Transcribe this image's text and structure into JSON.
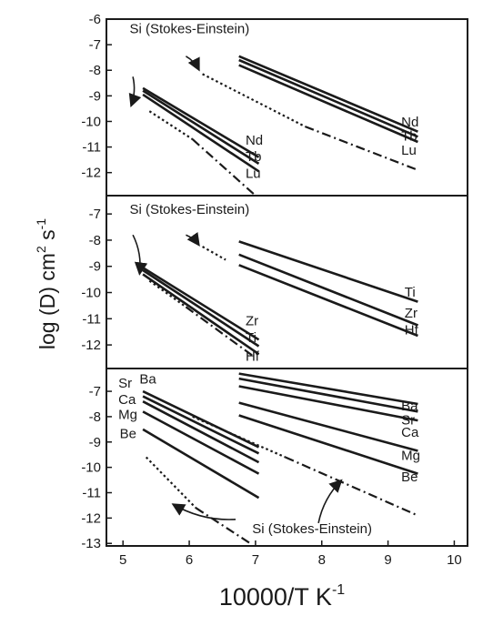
{
  "figure": {
    "xlabel_main": "10000/T  K",
    "xlabel_sup": "-1",
    "ylabel_main": "log (D) cm",
    "ylabel_sup1": "2",
    "ylabel_mid": " s",
    "ylabel_sup2": "-1",
    "ink_color": "#1a1a1a"
  },
  "chart_data": [
    {
      "type": "line",
      "panel": "top",
      "xlim": [
        4.75,
        10.2
      ],
      "ylim": [
        -12.9,
        -6
      ],
      "x_ticks": [],
      "y_ticks": [
        "-6",
        "-7",
        "-8",
        "-9",
        "-10",
        "-11",
        "-12"
      ],
      "series": [
        {
          "name": "Nd",
          "style": "solid",
          "x": [
            5.3,
            7.05
          ],
          "y": [
            -8.7,
            -11.4
          ]
        },
        {
          "name": "Tb",
          "style": "solid",
          "x": [
            5.3,
            7.05
          ],
          "y": [
            -8.8,
            -11.65
          ]
        },
        {
          "name": "Lu",
          "style": "solid",
          "x": [
            5.3,
            7.05
          ],
          "y": [
            -8.95,
            -11.95
          ]
        },
        {
          "name": "Nd",
          "style": "solid",
          "x": [
            6.75,
            9.45
          ],
          "y": [
            -7.45,
            -10.4
          ]
        },
        {
          "name": "Tb",
          "style": "solid",
          "x": [
            6.75,
            9.45
          ],
          "y": [
            -7.6,
            -10.6
          ]
        },
        {
          "name": "Lu",
          "style": "solid",
          "x": [
            6.75,
            9.45
          ],
          "y": [
            -7.8,
            -10.8
          ]
        },
        {
          "name": "Si (Stokes-Einstein)",
          "style": "dotted",
          "x": [
            5.4,
            6.05
          ],
          "y": [
            -9.6,
            -10.7
          ]
        },
        {
          "name": "Si (Stokes-Einstein)",
          "style": "dashdot",
          "x": [
            6.05,
            7.0
          ],
          "y": [
            -10.7,
            -12.9
          ]
        },
        {
          "name": "Si (Stokes-Einstein)",
          "style": "dotted",
          "x": [
            6.2,
            7.75
          ],
          "y": [
            -8.15,
            -10.2
          ]
        },
        {
          "name": "Si (Stokes-Einstein)",
          "style": "dashdot",
          "x": [
            7.75,
            9.45
          ],
          "y": [
            -10.2,
            -11.9
          ]
        }
      ],
      "annotations": [
        {
          "text": "Si (Stokes-Einstein)",
          "x": 5.1,
          "y": -6.55,
          "align": "start"
        },
        {
          "text": "Nd",
          "x": 6.85,
          "y": -10.9,
          "align": "start"
        },
        {
          "text": "Tb",
          "x": 6.85,
          "y": -11.55,
          "align": "start"
        },
        {
          "text": "Lu",
          "x": 6.85,
          "y": -12.2,
          "align": "start"
        },
        {
          "text": "Nd",
          "x": 9.2,
          "y": -10.2,
          "align": "start"
        },
        {
          "text": "Tb",
          "x": 9.2,
          "y": -10.75,
          "align": "start"
        },
        {
          "text": "Lu",
          "x": 9.2,
          "y": -11.3,
          "align": "start"
        }
      ],
      "arrows": [
        {
          "from": [
            5.15,
            -8.25
          ],
          "to": [
            5.12,
            -9.4
          ]
        },
        {
          "from": [
            5.95,
            -7.45
          ],
          "to": [
            6.15,
            -8.0
          ]
        }
      ]
    },
    {
      "type": "line",
      "panel": "middle",
      "xlim": [
        4.75,
        10.2
      ],
      "ylim": [
        -12.9,
        -6.3
      ],
      "x_ticks": [],
      "y_ticks": [
        "-7",
        "-8",
        "-9",
        "-10",
        "-11",
        "-12"
      ],
      "series": [
        {
          "name": "Zr",
          "style": "solid",
          "x": [
            5.3,
            7.05
          ],
          "y": [
            -9.05,
            -11.8
          ]
        },
        {
          "name": "Ti",
          "style": "solid",
          "x": [
            5.3,
            7.05
          ],
          "y": [
            -9.15,
            -12.05
          ]
        },
        {
          "name": "Hf",
          "style": "solid",
          "x": [
            5.3,
            7.05
          ],
          "y": [
            -9.3,
            -12.35
          ]
        },
        {
          "name": "Ti",
          "style": "solid",
          "x": [
            6.75,
            9.45
          ],
          "y": [
            -8.05,
            -10.35
          ]
        },
        {
          "name": "Zr",
          "style": "solid",
          "x": [
            6.75,
            9.45
          ],
          "y": [
            -8.55,
            -11.25
          ]
        },
        {
          "name": "Hf",
          "style": "solid",
          "x": [
            6.75,
            9.45
          ],
          "y": [
            -8.95,
            -11.65
          ]
        },
        {
          "name": "Si (Stokes-Einstein)",
          "style": "dotted",
          "x": [
            5.4,
            5.95
          ],
          "y": [
            -9.55,
            -10.55
          ]
        },
        {
          "name": "Si (Stokes-Einstein)",
          "style": "dashdot",
          "x": [
            5.95,
            6.95
          ],
          "y": [
            -10.55,
            -12.4
          ]
        },
        {
          "name": "Si (Stokes-Einstein)",
          "style": "dotted",
          "x": [
            6.2,
            6.55
          ],
          "y": [
            -8.25,
            -8.75
          ]
        }
      ],
      "annotations": [
        {
          "text": "Si (Stokes-Einstein)",
          "x": 5.1,
          "y": -7.0,
          "align": "start"
        },
        {
          "text": "Zr",
          "x": 6.85,
          "y": -11.25,
          "align": "start"
        },
        {
          "text": "Ti",
          "x": 6.85,
          "y": -11.9,
          "align": "start"
        },
        {
          "text": "Hf",
          "x": 6.85,
          "y": -12.6,
          "align": "start"
        },
        {
          "text": "Ti",
          "x": 9.25,
          "y": -10.15,
          "align": "start"
        },
        {
          "text": "Zr",
          "x": 9.25,
          "y": -10.95,
          "align": "start"
        },
        {
          "text": "Hf",
          "x": 9.25,
          "y": -11.6,
          "align": "start"
        }
      ],
      "arrows": [
        {
          "from": [
            5.15,
            -7.8
          ],
          "to": [
            5.25,
            -9.3
          ]
        },
        {
          "from": [
            5.95,
            -7.8
          ],
          "to": [
            6.15,
            -8.2
          ]
        }
      ]
    },
    {
      "type": "line",
      "panel": "bottom",
      "xlim": [
        4.75,
        10.2
      ],
      "ylim": [
        -13.1,
        -6.1
      ],
      "x_ticks": [
        "5",
        "6",
        "7",
        "8",
        "9",
        "10"
      ],
      "y_ticks": [
        "-7",
        "-8",
        "-9",
        "-10",
        "-11",
        "-12",
        "-13"
      ],
      "series": [
        {
          "name": "Ba",
          "style": "solid",
          "x": [
            5.3,
            7.05
          ],
          "y": [
            -7.0,
            -9.2
          ]
        },
        {
          "name": "Sr",
          "style": "solid",
          "x": [
            5.3,
            7.05
          ],
          "y": [
            -7.2,
            -9.45
          ]
        },
        {
          "name": "Ca",
          "style": "solid",
          "x": [
            5.3,
            7.05
          ],
          "y": [
            -7.4,
            -9.8
          ]
        },
        {
          "name": "Mg",
          "style": "solid",
          "x": [
            5.3,
            7.05
          ],
          "y": [
            -7.8,
            -10.25
          ]
        },
        {
          "name": "Be",
          "style": "solid",
          "x": [
            5.3,
            7.05
          ],
          "y": [
            -8.5,
            -11.2
          ]
        },
        {
          "name": "Ba",
          "style": "solid",
          "x": [
            6.75,
            9.45
          ],
          "y": [
            -6.3,
            -7.5
          ]
        },
        {
          "name": "Sr",
          "style": "solid",
          "x": [
            6.75,
            9.45
          ],
          "y": [
            -6.5,
            -7.8
          ]
        },
        {
          "name": "Ca",
          "style": "solid",
          "x": [
            6.75,
            9.45
          ],
          "y": [
            -6.8,
            -8.15
          ]
        },
        {
          "name": "Mg",
          "style": "solid",
          "x": [
            6.75,
            9.45
          ],
          "y": [
            -7.45,
            -9.35
          ]
        },
        {
          "name": "Be",
          "style": "solid",
          "x": [
            6.75,
            9.45
          ],
          "y": [
            -7.95,
            -10.25
          ]
        },
        {
          "name": "Si (Stokes-Einstein)",
          "style": "dotted",
          "x": [
            5.35,
            6.1
          ],
          "y": [
            -9.6,
            -11.6
          ]
        },
        {
          "name": "Si (Stokes-Einstein)",
          "style": "dashdot",
          "x": [
            6.1,
            6.95
          ],
          "y": [
            -11.6,
            -13.05
          ]
        },
        {
          "name": "Si (Stokes-Einstein)",
          "style": "dotted",
          "x": [
            6.05,
            7.45
          ],
          "y": [
            -8.0,
            -9.6
          ]
        },
        {
          "name": "Si (Stokes-Einstein)",
          "style": "dashdot",
          "x": [
            7.45,
            9.45
          ],
          "y": [
            -9.6,
            -11.9
          ]
        }
      ],
      "annotations": [
        {
          "text": "Sr",
          "x": 4.93,
          "y": -6.85,
          "align": "start"
        },
        {
          "text": "Ba",
          "x": 5.25,
          "y": -6.7,
          "align": "start"
        },
        {
          "text": "Ca",
          "x": 4.93,
          "y": -7.5,
          "align": "start"
        },
        {
          "text": "Mg",
          "x": 4.93,
          "y": -8.1,
          "align": "start"
        },
        {
          "text": "Be",
          "x": 4.95,
          "y": -8.85,
          "align": "start"
        },
        {
          "text": "Ba",
          "x": 9.2,
          "y": -7.75,
          "align": "start"
        },
        {
          "text": "Sr",
          "x": 9.2,
          "y": -8.3,
          "align": "start"
        },
        {
          "text": "Ca",
          "x": 9.2,
          "y": -8.8,
          "align": "start"
        },
        {
          "text": "Mg",
          "x": 9.2,
          "y": -9.7,
          "align": "start"
        },
        {
          "text": "Be",
          "x": 9.2,
          "y": -10.55,
          "align": "start"
        },
        {
          "text": "Si (Stokes-Einstein)",
          "x": 6.95,
          "y": -12.6,
          "align": "start"
        }
      ],
      "arrows": [
        {
          "from": [
            6.7,
            -12.05
          ],
          "to": [
            5.75,
            -11.45
          ]
        },
        {
          "from": [
            7.95,
            -12.2
          ],
          "to": [
            8.3,
            -10.5
          ]
        }
      ]
    }
  ]
}
